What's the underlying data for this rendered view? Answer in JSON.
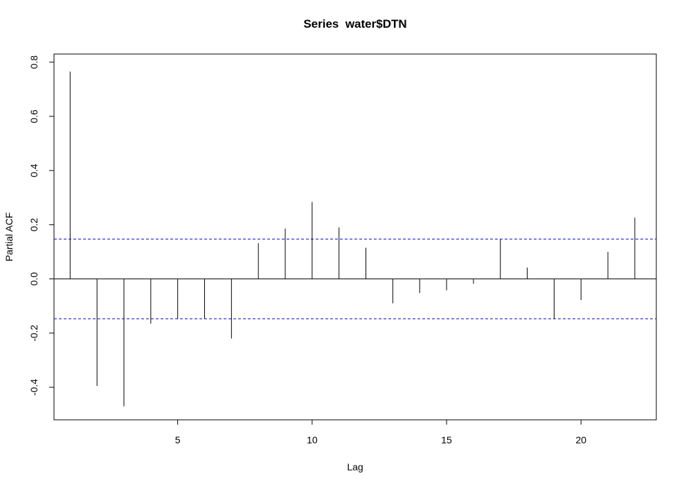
{
  "chart_data": {
    "type": "bar",
    "subtype": "partial-autocorrelation",
    "title": "Series  water$DTN",
    "xlabel": "Lag",
    "ylabel": "Partial ACF",
    "xlim": [
      0.4,
      22.8
    ],
    "ylim": [
      -0.52,
      0.83
    ],
    "x_ticks": [
      5,
      10,
      15,
      20
    ],
    "y_ticks": [
      -0.4,
      -0.2,
      0.0,
      0.2,
      0.4,
      0.6,
      0.8
    ],
    "x": [
      1,
      2,
      3,
      4,
      5,
      6,
      7,
      8,
      9,
      10,
      11,
      12,
      13,
      14,
      15,
      16,
      17,
      18,
      19,
      20,
      21,
      22
    ],
    "values": [
      0.765,
      -0.395,
      -0.47,
      -0.165,
      -0.148,
      -0.148,
      -0.22,
      0.132,
      0.186,
      0.284,
      0.19,
      0.115,
      -0.09,
      -0.052,
      -0.042,
      -0.018,
      0.146,
      0.042,
      -0.148,
      -0.078,
      0.1,
      0.226
    ],
    "confidence_bound": 0.147,
    "colors": {
      "bars": "#000000",
      "confidence_lines": "#0000cc",
      "zero_line": "#000000",
      "frame": "#000000"
    },
    "grid": false
  }
}
